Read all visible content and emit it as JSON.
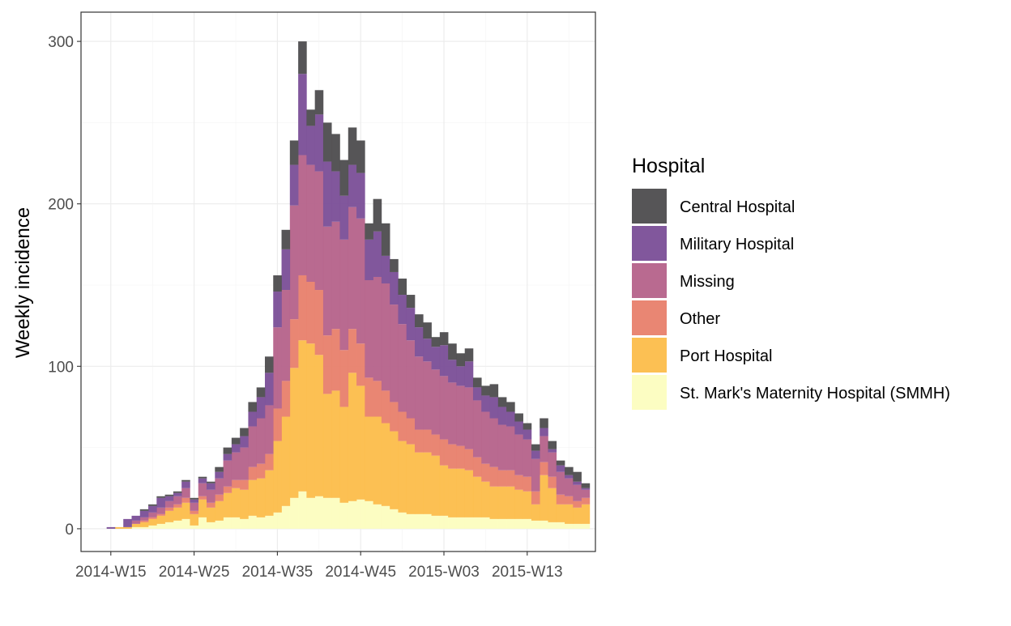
{
  "chart_data": {
    "type": "bar",
    "stacked": true,
    "title": "",
    "xlabel": "",
    "ylabel": "Weekly incidence",
    "ylim": [
      -14,
      318
    ],
    "y_ticks": [
      0,
      100,
      200,
      300
    ],
    "x_ticks": [
      "2014-W15",
      "2014-W25",
      "2014-W35",
      "2014-W45",
      "2015-W03",
      "2015-W13"
    ],
    "x_tick_week_index": [
      0,
      10,
      20,
      30,
      40,
      50
    ],
    "first_week": "2014-W15",
    "weeks": [
      "2014-W15",
      "2014-W16",
      "2014-W17",
      "2014-W18",
      "2014-W19",
      "2014-W20",
      "2014-W21",
      "2014-W22",
      "2014-W23",
      "2014-W24",
      "2014-W25",
      "2014-W26",
      "2014-W27",
      "2014-W28",
      "2014-W29",
      "2014-W30",
      "2014-W31",
      "2014-W32",
      "2014-W33",
      "2014-W34",
      "2014-W35",
      "2014-W36",
      "2014-W37",
      "2014-W38",
      "2014-W39",
      "2014-W40",
      "2014-W41",
      "2014-W42",
      "2014-W43",
      "2014-W44",
      "2014-W45",
      "2014-W46",
      "2014-W47",
      "2014-W48",
      "2014-W49",
      "2014-W50",
      "2014-W51",
      "2014-W52",
      "2015-W01",
      "2015-W02",
      "2015-W03",
      "2015-W04",
      "2015-W05",
      "2015-W06",
      "2015-W07",
      "2015-W08",
      "2015-W09",
      "2015-W10",
      "2015-W11",
      "2015-W12",
      "2015-W13",
      "2015-W14",
      "2015-W15",
      "2015-W16",
      "2015-W17",
      "2015-W18",
      "2015-W19",
      "2015-W20"
    ],
    "grid": true,
    "legend_position": "right",
    "legend_title": "Hospital",
    "series": [
      {
        "name": "St. Mark's Maternity Hospital (SMMH)",
        "color": "#FCFDBF",
        "values": [
          0,
          0,
          0,
          1,
          1,
          2,
          3,
          4,
          5,
          6,
          2,
          7,
          4,
          5,
          7,
          7,
          6,
          8,
          7,
          8,
          10,
          14,
          19,
          23,
          19,
          20,
          19,
          19,
          16,
          17,
          18,
          17,
          15,
          14,
          12,
          10,
          9,
          9,
          9,
          8,
          8,
          7,
          7,
          7,
          7,
          7,
          6,
          6,
          6,
          6,
          6,
          5,
          5,
          4,
          4,
          3,
          3,
          3
        ]
      },
      {
        "name": "Port Hospital",
        "color": "#FCBD4A",
        "values": [
          0,
          1,
          1,
          2,
          3,
          4,
          5,
          7,
          8,
          10,
          7,
          11,
          9,
          12,
          15,
          18,
          18,
          22,
          24,
          28,
          44,
          55,
          80,
          93,
          95,
          87,
          64,
          66,
          59,
          79,
          70,
          52,
          54,
          51,
          48,
          44,
          43,
          38,
          38,
          37,
          31,
          30,
          30,
          29,
          25,
          22,
          20,
          20,
          20,
          18,
          17,
          10,
          28,
          21,
          11,
          12,
          10,
          12
        ]
      },
      {
        "name": "Other",
        "color": "#E8806C",
        "values": [
          0,
          0,
          0,
          0,
          1,
          1,
          1,
          2,
          2,
          3,
          2,
          2,
          3,
          4,
          4,
          5,
          6,
          8,
          9,
          10,
          20,
          22,
          30,
          40,
          38,
          40,
          36,
          38,
          35,
          27,
          26,
          24,
          22,
          20,
          18,
          18,
          16,
          14,
          14,
          13,
          16,
          15,
          14,
          13,
          12,
          11,
          12,
          10,
          10,
          9,
          9,
          8,
          8,
          7,
          6,
          5,
          4,
          4
        ]
      },
      {
        "name": "Missing",
        "color": "#B5628A",
        "values": [
          0,
          0,
          0,
          2,
          2,
          3,
          4,
          4,
          5,
          6,
          5,
          8,
          8,
          10,
          16,
          17,
          20,
          25,
          28,
          30,
          50,
          56,
          70,
          74,
          72,
          73,
          67,
          66,
          68,
          75,
          77,
          60,
          64,
          66,
          60,
          54,
          48,
          45,
          42,
          40,
          39,
          38,
          37,
          38,
          35,
          32,
          30,
          28,
          27,
          25,
          23,
          20,
          16,
          15,
          14,
          11,
          10,
          5
        ]
      },
      {
        "name": "Military Hospital",
        "color": "#7A4E97",
        "values": [
          1,
          0,
          5,
          3,
          4,
          4,
          6,
          3,
          2,
          4,
          2,
          3,
          4,
          4,
          4,
          5,
          7,
          9,
          13,
          20,
          22,
          25,
          25,
          50,
          24,
          35,
          40,
          31,
          27,
          26,
          28,
          25,
          28,
          17,
          20,
          18,
          20,
          18,
          14,
          14,
          19,
          14,
          12,
          16,
          8,
          10,
          13,
          11,
          9,
          8,
          6,
          5,
          5,
          2,
          4,
          2,
          2,
          1
        ]
      },
      {
        "name": "Central Hospital",
        "color": "#4D4C4E",
        "values": [
          0,
          0,
          0,
          0,
          1,
          1,
          1,
          1,
          1,
          1,
          1,
          1,
          1,
          3,
          4,
          4,
          5,
          6,
          6,
          10,
          10,
          12,
          15,
          20,
          10,
          15,
          24,
          23,
          22,
          23,
          20,
          10,
          20,
          20,
          8,
          10,
          8,
          8,
          10,
          6,
          8,
          10,
          8,
          8,
          6,
          6,
          8,
          6,
          6,
          5,
          4,
          4,
          6,
          5,
          3,
          5,
          6,
          3
        ]
      }
    ]
  }
}
